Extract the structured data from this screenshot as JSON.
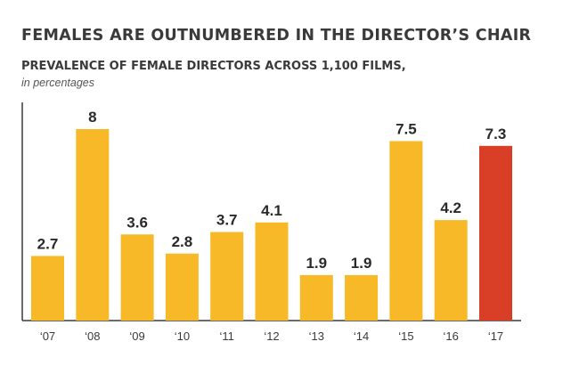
{
  "heading": {
    "title": "FEMALES ARE OUTNUMBERED IN THE DIRECTOR’S CHAIR",
    "subtitle": "PREVALENCE OF FEMALE DIRECTORS ACROSS 1,100 FILMS,",
    "unit_note": "in percentages"
  },
  "colors": {
    "bar_default": "#f7b928",
    "bar_highlight": "#d93e26",
    "axis": "#3a3a3a"
  },
  "chart_data": {
    "type": "bar",
    "title": "FEMALES ARE OUTNUMBERED IN THE DIRECTOR’S CHAIR",
    "subtitle": "PREVALENCE OF FEMALE DIRECTORS ACROSS 1,100 FILMS,",
    "ylabel": "in percentages",
    "xlabel": "",
    "categories": [
      "‘07",
      "‘08",
      "‘09",
      "‘10",
      "‘11",
      "‘12",
      "‘13",
      "‘14",
      "‘15",
      "‘16",
      "‘17"
    ],
    "values": [
      2.7,
      8,
      3.6,
      2.8,
      3.7,
      4.1,
      1.9,
      1.9,
      7.5,
      4.2,
      7.3
    ],
    "data_labels": [
      "2.7",
      "8",
      "3.6",
      "2.8",
      "3.7",
      "4.1",
      "1.9",
      "1.9",
      "7.5",
      "4.2",
      "7.3"
    ],
    "highlight_index": 10,
    "ylim": [
      0,
      8.4
    ],
    "grid": false,
    "legend": "none"
  }
}
